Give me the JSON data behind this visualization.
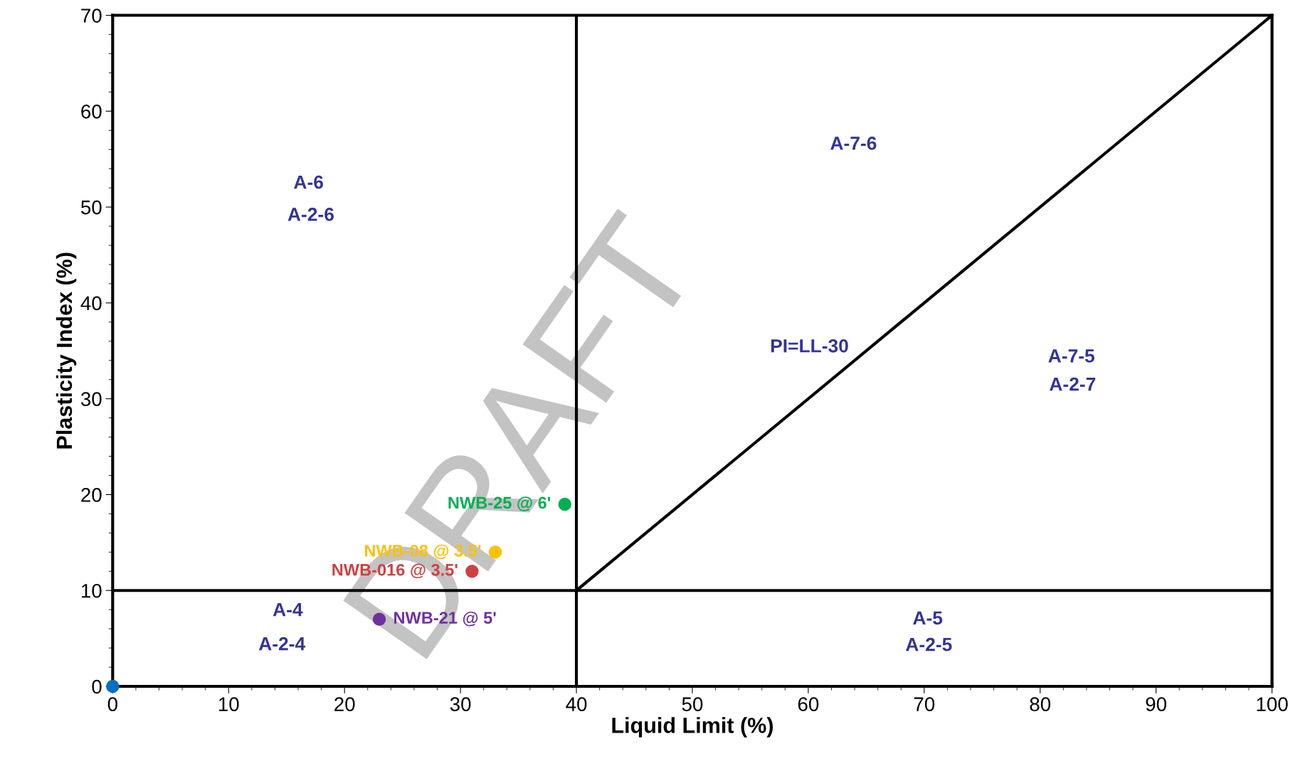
{
  "chart_data": {
    "type": "scatter",
    "xlabel": "Liquid Limit (%)",
    "ylabel": "Plasticity Index (%)",
    "xlim": [
      0,
      100
    ],
    "ylim": [
      0,
      70
    ],
    "xticks": [
      0,
      10,
      20,
      30,
      40,
      50,
      60,
      70,
      80,
      90,
      100
    ],
    "yticks": [
      0,
      10,
      20,
      30,
      40,
      50,
      60,
      70
    ],
    "grid": false,
    "legend": false,
    "marker": "circle",
    "series": [
      {
        "color": "#0070c0",
        "x": [
          0
        ],
        "values": [
          0
        ]
      },
      {
        "name": "NWB-25 @ 6'",
        "color": "#00b050",
        "x": [
          39
        ],
        "values": [
          19
        ]
      },
      {
        "name": "NWB-08 @ 3.5'",
        "color": "#ffc000",
        "x": [
          33
        ],
        "values": [
          14
        ]
      },
      {
        "name": "NWB-016 @ 3.5'",
        "color": "#d04040",
        "x": [
          31
        ],
        "values": [
          12
        ]
      },
      {
        "name": "NWB-21 @ 5'",
        "color": "#7030a0",
        "x": [
          23
        ],
        "values": [
          7
        ]
      },
      {
        "type": "line",
        "color": "#000000",
        "marker": "none",
        "x": [
          40,
          100
        ],
        "values": [
          10,
          70
        ]
      }
    ],
    "ref_lines": [
      {
        "axis": "x",
        "value": 40,
        "color": "#000000"
      },
      {
        "axis": "y",
        "value": 10,
        "color": "#000000"
      }
    ],
    "annotations": [
      "A-6",
      "A-2-6",
      "A-7-6",
      "PI=LL-30",
      "A-7-5",
      "A-2-7",
      "A-4",
      "A-2-4",
      "A-5",
      "A-2-5",
      "DRAFT"
    ]
  }
}
